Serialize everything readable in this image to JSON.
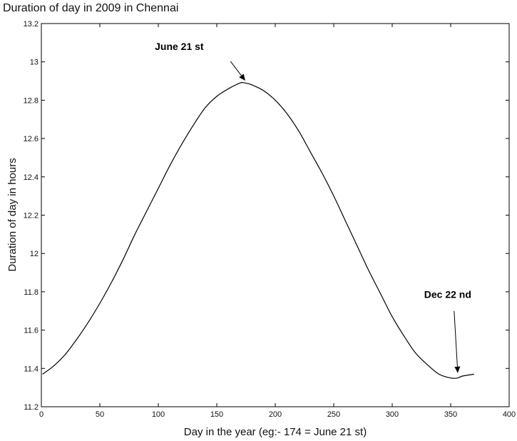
{
  "chart_data": {
    "type": "line",
    "title": "Duration of day in 2009 in Chennai",
    "xlabel": "Day in the year (eg:- 174 = June 21 st)",
    "ylabel": "Duration of day in hours",
    "xlim": [
      0,
      400
    ],
    "ylim": [
      11.2,
      13.2
    ],
    "xticks": [
      0,
      50,
      100,
      150,
      200,
      250,
      300,
      350,
      400
    ],
    "yticks": [
      11.2,
      11.4,
      11.6,
      11.8,
      12,
      12.2,
      12.4,
      12.6,
      12.8,
      13,
      13.2
    ],
    "ytick_labels": [
      "11.2",
      "11.4",
      "11.6",
      "11.8",
      "12",
      "12.2",
      "12.4",
      "12.6",
      "12.8",
      "13",
      "13.2"
    ],
    "grid": false,
    "legend": "none",
    "line_color": "#000000",
    "series": [
      {
        "x": [
          1,
          10,
          20,
          30,
          40,
          50,
          60,
          70,
          80,
          90,
          100,
          110,
          120,
          130,
          140,
          150,
          160,
          170,
          174,
          180,
          190,
          200,
          210,
          220,
          230,
          240,
          250,
          260,
          270,
          280,
          290,
          300,
          310,
          320,
          330,
          340,
          350,
          356,
          360,
          370
        ],
        "values": [
          11.37,
          11.41,
          11.47,
          11.55,
          11.64,
          11.74,
          11.85,
          11.97,
          12.1,
          12.22,
          12.34,
          12.46,
          12.57,
          12.67,
          12.76,
          12.82,
          12.86,
          12.89,
          12.89,
          12.88,
          12.85,
          12.8,
          12.73,
          12.64,
          12.53,
          12.42,
          12.3,
          12.17,
          12.04,
          11.91,
          11.79,
          11.67,
          11.57,
          11.48,
          11.42,
          11.37,
          11.35,
          11.35,
          11.36,
          11.37
        ]
      }
    ],
    "annotations": [
      {
        "text": "June 21 st",
        "x": 174,
        "y": 12.89
      },
      {
        "text": "Dec 22 nd",
        "x": 356,
        "y": 11.35
      }
    ]
  }
}
